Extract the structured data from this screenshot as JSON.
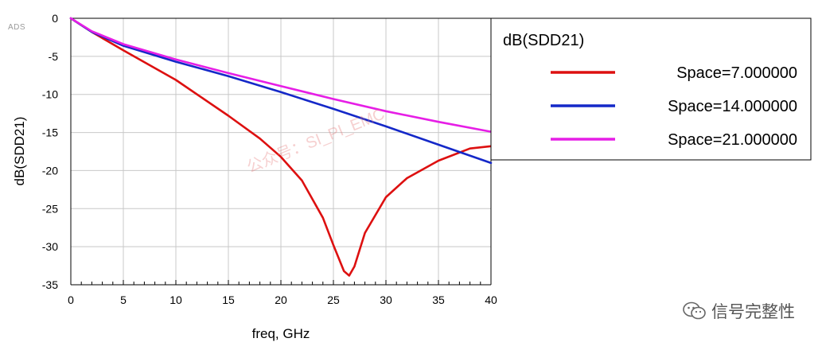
{
  "tags": {
    "ads": "ADS",
    "watermark": "公众号：SI_PI_EMC",
    "brand": "信号完整性"
  },
  "colors": {
    "space7": "#dd1010",
    "space14": "#1428c8",
    "space21": "#e61ee6",
    "grid": "#c8c8c8",
    "axis": "#000000"
  },
  "chart_data": {
    "type": "line",
    "title": "",
    "xlabel": "freq, GHz",
    "ylabel": "dB(SDD21)",
    "xlim": [
      0,
      40
    ],
    "ylim": [
      -35,
      0
    ],
    "xticks": [
      "0",
      "5",
      "10",
      "15",
      "20",
      "25",
      "30",
      "35",
      "40"
    ],
    "yticks": [
      "0",
      "-5",
      "-10",
      "-15",
      "-20",
      "-25",
      "-30",
      "-35"
    ],
    "grid": true,
    "legend": {
      "title": "dB(SDD21)",
      "position": "right"
    },
    "series": [
      {
        "name": "Space=7.000000",
        "color": "#dd1010",
        "x": [
          0,
          2,
          5,
          10,
          15,
          18,
          20,
          22,
          24,
          25,
          26,
          26.5,
          27,
          28,
          30,
          32,
          35,
          38,
          40
        ],
        "y": [
          0,
          -1.8,
          -4.2,
          -8.1,
          -12.8,
          -15.8,
          -18.2,
          -21.3,
          -26.2,
          -29.8,
          -33.2,
          -33.8,
          -32.6,
          -28.2,
          -23.5,
          -21.0,
          -18.7,
          -17.1,
          -16.8
        ]
      },
      {
        "name": "Space=14.000000",
        "color": "#1428c8",
        "x": [
          0,
          2,
          5,
          10,
          15,
          20,
          25,
          30,
          35,
          40
        ],
        "y": [
          0,
          -1.8,
          -3.6,
          -5.7,
          -7.6,
          -9.7,
          -11.9,
          -14.2,
          -16.6,
          -19.0
        ]
      },
      {
        "name": "Space=21.000000",
        "color": "#e61ee6",
        "x": [
          0,
          2,
          5,
          10,
          15,
          20,
          25,
          30,
          35,
          40
        ],
        "y": [
          0,
          -1.7,
          -3.4,
          -5.4,
          -7.2,
          -8.9,
          -10.6,
          -12.2,
          -13.6,
          -14.9
        ]
      }
    ]
  }
}
